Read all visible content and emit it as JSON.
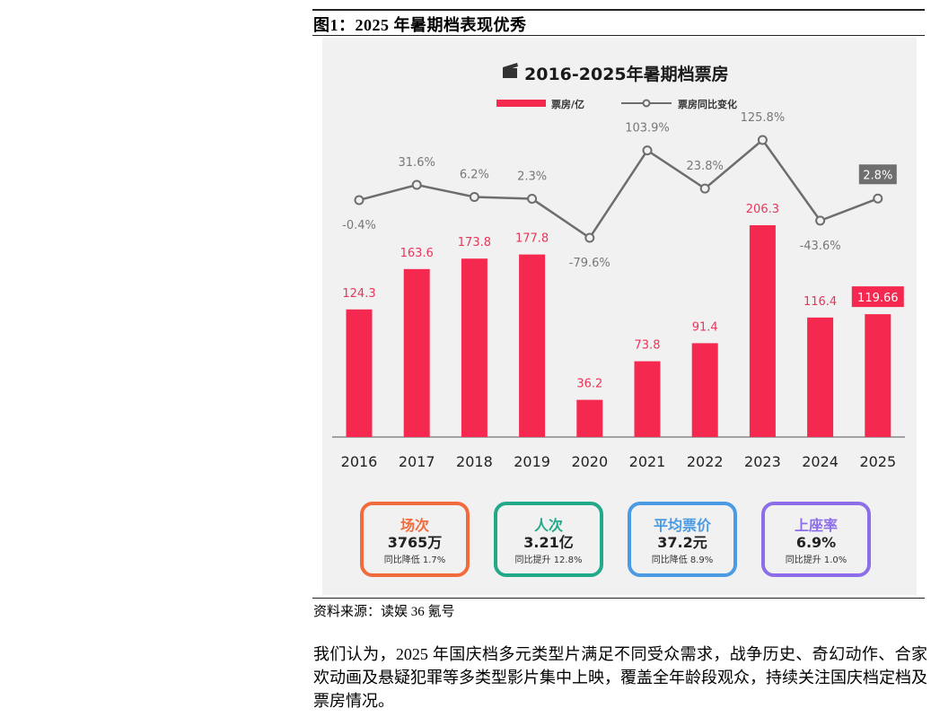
{
  "figure": {
    "title": "图1：2025 年暑期档表现优秀",
    "source": "资料来源：读娱 36 氪号"
  },
  "paragraph": {
    "text": "我们认为，2025 年国庆档多元类型片满足不同受众需求，战争历史、奇幻动作、合家欢动画及悬疑犯罪等多类型影片集中上映，覆盖全年龄段观众，持续关注国庆档定档及票房情况。"
  },
  "chart_data": {
    "type": "bar",
    "title": "2016-2025年暑期档票房",
    "title_icon": "clapperboard-icon",
    "categories": [
      "2016",
      "2017",
      "2018",
      "2019",
      "2020",
      "2021",
      "2022",
      "2023",
      "2024",
      "2025"
    ],
    "series": [
      {
        "name": "票房/亿",
        "type": "bar",
        "color": "#f5294f",
        "values": [
          124.3,
          163.6,
          173.8,
          177.8,
          36.2,
          73.8,
          91.4,
          206.3,
          116.4,
          119.66
        ],
        "labels": [
          "124.3",
          "163.6",
          "173.8",
          "177.8",
          "36.2",
          "73.8",
          "91.4",
          "206.3",
          "116.4",
          "119.66"
        ]
      },
      {
        "name": "票房同比变化",
        "type": "line",
        "color": "#6d6d6d",
        "unit": "%",
        "values": [
          -0.4,
          31.6,
          6.2,
          2.3,
          -79.6,
          103.9,
          23.8,
          125.8,
          -43.6,
          2.8
        ],
        "labels": [
          "-0.4%",
          "31.6%",
          "6.2%",
          "2.3%",
          "-79.6%",
          "103.9%",
          "23.8%",
          "125.8%",
          "-43.6%",
          "2.8%"
        ]
      }
    ],
    "legend": {
      "position": "top",
      "entries": [
        "票房/亿",
        "票房同比变化"
      ]
    },
    "xlabel": "",
    "ylabel": "",
    "grid": false,
    "highlight": {
      "category": "2025",
      "bar_label_boxed": true,
      "line_label_boxed": true
    }
  },
  "stats": [
    {
      "label": "场次",
      "value": "3765万",
      "change": "同比降低 1.7%",
      "color": "#f26b3c"
    },
    {
      "label": "人次",
      "value": "3.21亿",
      "change": "同比提升 12.8%",
      "color": "#21a98a"
    },
    {
      "label": "平均票价",
      "value": "37.2元",
      "change": "同比降低 8.9%",
      "color": "#4a9be3"
    },
    {
      "label": "上座率",
      "value": "6.9%",
      "change": "同比提升 1.0%",
      "color": "#8c6ee8"
    }
  ]
}
